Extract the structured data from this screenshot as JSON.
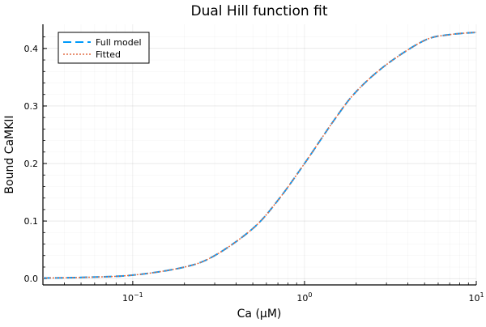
{
  "chart_data": {
    "type": "line",
    "title": "Dual Hill function fit",
    "xlabel": "Ca (μM)",
    "ylabel": "Bound CaMKII",
    "xscale": "log10",
    "xlim": [
      0.03,
      10
    ],
    "ylim": [
      -0.011,
      0.442
    ],
    "xticks": [
      {
        "value": 0.1,
        "base": "10",
        "exp": "−1"
      },
      {
        "value": 1,
        "base": "10",
        "exp": "0"
      },
      {
        "value": 10,
        "base": "10",
        "exp": "1"
      }
    ],
    "yticks": [
      {
        "value": 0.0,
        "label": "0.0"
      },
      {
        "value": 0.1,
        "label": "0.1"
      },
      {
        "value": 0.2,
        "label": "0.2"
      },
      {
        "value": 0.3,
        "label": "0.3"
      },
      {
        "value": 0.4,
        "label": "0.4"
      }
    ],
    "grid": true,
    "minor_grid": true,
    "legend_position": "top-left",
    "x": [
      0.03,
      0.05,
      0.1,
      0.2,
      0.3,
      0.5,
      0.7,
      1,
      1.5,
      2,
      3,
      5,
      7,
      10
    ],
    "series": [
      {
        "name": "Full model",
        "color": "#009AFA",
        "style": "dashed",
        "values": [
          0.001,
          0.002,
          0.006,
          0.02,
          0.04,
          0.087,
          0.136,
          0.2,
          0.277,
          0.325,
          0.372,
          0.414,
          0.424,
          0.428
        ]
      },
      {
        "name": "Fitted",
        "color": "#E26F46",
        "style": "dotted",
        "values": [
          0.001,
          0.002,
          0.006,
          0.02,
          0.04,
          0.087,
          0.136,
          0.2,
          0.277,
          0.325,
          0.372,
          0.414,
          0.424,
          0.428
        ]
      }
    ]
  }
}
